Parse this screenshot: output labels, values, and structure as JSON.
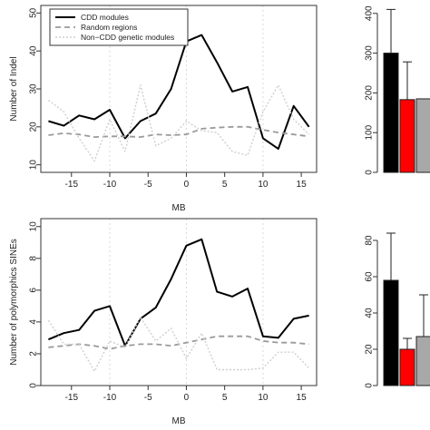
{
  "colors": {
    "cdd": "#000000",
    "random": "#9a9a9a",
    "noncdd": "#cfcfcf",
    "bar_black": "#000000",
    "bar_red": "#ff0000",
    "bar_grey": "#a8a8a8",
    "vline": "#d9d9d9"
  },
  "chart_data": [
    {
      "id": "indel-line",
      "type": "line",
      "xlabel": "MB",
      "ylabel": "Number of Indel",
      "xlim": [
        -19,
        17
      ],
      "ylim": [
        8,
        52
      ],
      "xticks": [
        -15,
        -10,
        -5,
        0,
        5,
        10,
        15
      ],
      "yticks": [
        10,
        20,
        30,
        40,
        50
      ],
      "vlines": [
        -10,
        0,
        10
      ],
      "legend": {
        "position": "top-left",
        "entries": [
          "CDD modules",
          "Random regions",
          "Non−CDD genetic modules"
        ]
      },
      "x": [
        -18,
        -16,
        -14,
        -12,
        -10,
        -8,
        -6,
        -4,
        -2,
        0,
        2,
        4,
        6,
        8,
        10,
        12,
        14,
        16
      ],
      "series": [
        {
          "name": "CDD modules",
          "style": "solid",
          "values": [
            21.5,
            20.3,
            23.0,
            22.0,
            24.5,
            17.0,
            21.5,
            23.5,
            30.0,
            42.5,
            44.2,
            37.0,
            29.3,
            30.5,
            17.0,
            14.2,
            25.5,
            20.0
          ]
        },
        {
          "name": "Random regions",
          "style": "dashed",
          "values": [
            17.8,
            18.3,
            18.0,
            17.3,
            17.5,
            17.5,
            17.3,
            18.0,
            17.8,
            18.0,
            19.5,
            19.8,
            20.0,
            20.0,
            19.2,
            18.5,
            18.0,
            17.5
          ]
        },
        {
          "name": "Non−CDD genetic modules",
          "style": "dotted",
          "values": [
            27.0,
            24.0,
            17.0,
            11.0,
            22.0,
            13.5,
            31.0,
            15.0,
            17.0,
            21.5,
            19.0,
            18.5,
            13.5,
            12.5,
            24.0,
            31.0,
            22.0,
            18.0
          ]
        }
      ]
    },
    {
      "id": "indel-bar",
      "type": "bar",
      "ylim": [
        0,
        420
      ],
      "yticks": [
        0,
        100,
        200,
        300,
        400
      ],
      "values": [
        300,
        183,
        185
      ],
      "errors": [
        110,
        95,
        0
      ]
    },
    {
      "id": "sines-line",
      "type": "line",
      "xlabel": "MB",
      "ylabel": "Number of polymorphics SINEs",
      "xlim": [
        -19,
        17
      ],
      "ylim": [
        0,
        10.5
      ],
      "xticks": [
        -15,
        -10,
        -5,
        0,
        5,
        10,
        15
      ],
      "yticks": [
        0,
        2,
        4,
        6,
        8,
        10
      ],
      "vlines": [
        -10,
        0,
        10
      ],
      "x": [
        -18,
        -16,
        -14,
        -12,
        -10,
        -8,
        -6,
        -4,
        -2,
        0,
        2,
        4,
        6,
        8,
        10,
        12,
        14,
        16
      ],
      "series": [
        {
          "name": "CDD modules",
          "style": "solid",
          "values": [
            2.9,
            3.3,
            3.5,
            4.7,
            5.0,
            2.5,
            4.2,
            4.9,
            6.7,
            8.8,
            9.2,
            5.9,
            5.6,
            6.1,
            3.1,
            3.0,
            4.2,
            4.4
          ]
        },
        {
          "name": "Random regions",
          "style": "dashed",
          "values": [
            2.4,
            2.5,
            2.6,
            2.5,
            2.3,
            2.5,
            2.6,
            2.6,
            2.5,
            2.7,
            2.9,
            3.1,
            3.1,
            3.1,
            2.8,
            2.7,
            2.7,
            2.6
          ]
        },
        {
          "name": "Non−CDD genetic modules",
          "style": "dotted",
          "values": [
            4.1,
            2.6,
            2.6,
            0.9,
            2.8,
            2.4,
            4.3,
            2.8,
            3.6,
            1.7,
            3.3,
            1.0,
            1.0,
            1.0,
            1.1,
            2.1,
            2.1,
            1.1
          ]
        }
      ]
    },
    {
      "id": "sines-bar",
      "type": "bar",
      "ylim": [
        0,
        92
      ],
      "yticks": [
        0,
        20,
        40,
        60,
        80
      ],
      "values": [
        58,
        20,
        27
      ],
      "errors": [
        26,
        6,
        23
      ]
    }
  ]
}
